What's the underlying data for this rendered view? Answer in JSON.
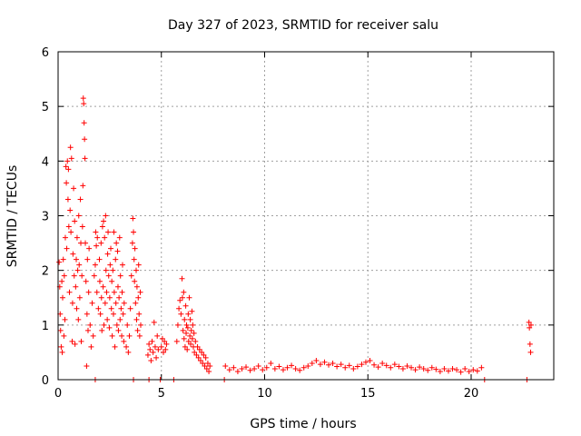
{
  "chart_data": {
    "type": "scatter",
    "title": "Day 327 of 2023, SRMTID for receiver salu",
    "xlabel": "GPS time / hours",
    "ylabel": "SRMTID / TECUs",
    "xlim": [
      0,
      24
    ],
    "ylim": [
      0,
      6
    ],
    "x_ticks": [
      0,
      5,
      10,
      15,
      20
    ],
    "x_tick_labels": [
      "0",
      "5",
      "10",
      "15",
      "20"
    ],
    "y_ticks": [
      0,
      1,
      2,
      3,
      4,
      5,
      6
    ],
    "y_tick_labels": [
      "0",
      "1",
      "2",
      "3",
      "4",
      "5",
      "6"
    ],
    "grid": true,
    "marker": "plus",
    "series": [
      {
        "name": "SRMTID",
        "color": "#ff0000",
        "points": [
          [
            0.05,
            2.15
          ],
          [
            0.08,
            1.7
          ],
          [
            0.1,
            1.2
          ],
          [
            0.12,
            0.9
          ],
          [
            0.15,
            0.6
          ],
          [
            0.18,
            1.8
          ],
          [
            0.2,
            0.5
          ],
          [
            0.22,
            1.5
          ],
          [
            0.25,
            2.2
          ],
          [
            0.28,
            0.8
          ],
          [
            0.3,
            1.9
          ],
          [
            0.33,
            1.1
          ],
          [
            0.35,
            2.6
          ],
          [
            0.38,
            3.9
          ],
          [
            0.4,
            3.6
          ],
          [
            0.42,
            2.4
          ],
          [
            0.45,
            4.0
          ],
          [
            0.48,
            3.3
          ],
          [
            0.5,
            3.85
          ],
          [
            0.52,
            2.8
          ],
          [
            0.55,
            1.6
          ],
          [
            0.58,
            3.1
          ],
          [
            0.6,
            4.25
          ],
          [
            0.62,
            2.7
          ],
          [
            0.65,
            4.05
          ],
          [
            0.68,
            0.7
          ],
          [
            0.7,
            1.4
          ],
          [
            0.72,
            2.3
          ],
          [
            0.75,
            3.5
          ],
          [
            0.78,
            1.9
          ],
          [
            0.8,
            2.9
          ],
          [
            0.82,
            0.65
          ],
          [
            0.85,
            1.7
          ],
          [
            0.88,
            2.2
          ],
          [
            0.9,
            1.3
          ],
          [
            0.92,
            2.6
          ],
          [
            0.95,
            2.0
          ],
          [
            0.98,
            1.1
          ],
          [
            1.0,
            3.0
          ],
          [
            1.02,
            2.1
          ],
          [
            1.05,
            1.5
          ],
          [
            1.08,
            3.3
          ],
          [
            1.1,
            2.5
          ],
          [
            1.12,
            0.7
          ],
          [
            1.15,
            1.9
          ],
          [
            1.18,
            2.8
          ],
          [
            1.2,
            3.55
          ],
          [
            1.22,
            5.15
          ],
          [
            1.24,
            5.05
          ],
          [
            1.26,
            4.7
          ],
          [
            1.28,
            4.4
          ],
          [
            1.3,
            4.05
          ],
          [
            1.32,
            2.5
          ],
          [
            1.35,
            1.8
          ],
          [
            1.38,
            0.25
          ],
          [
            1.4,
            1.2
          ],
          [
            1.42,
            2.2
          ],
          [
            1.45,
            0.9
          ],
          [
            1.48,
            1.6
          ],
          [
            1.5,
            2.4
          ],
          [
            1.55,
            1.0
          ],
          [
            1.6,
            0.6
          ],
          [
            1.65,
            1.4
          ],
          [
            1.7,
            0.8
          ],
          [
            1.75,
            1.9
          ],
          [
            1.8,
            2.1
          ],
          [
            1.82,
            2.7
          ],
          [
            1.85,
            2.45
          ],
          [
            1.88,
            1.6
          ],
          [
            1.9,
            2.6
          ],
          [
            1.95,
            1.3
          ],
          [
            2.0,
            2.2
          ],
          [
            2.02,
            1.8
          ],
          [
            2.05,
            1.2
          ],
          [
            2.08,
            2.5
          ],
          [
            2.1,
            1.5
          ],
          [
            2.12,
            0.9
          ],
          [
            2.15,
            2.8
          ],
          [
            2.18,
            1.7
          ],
          [
            2.2,
            2.9
          ],
          [
            2.22,
            1.0
          ],
          [
            2.25,
            2.6
          ],
          [
            2.28,
            1.4
          ],
          [
            2.3,
            3.0
          ],
          [
            2.32,
            2.0
          ],
          [
            2.35,
            1.6
          ],
          [
            2.38,
            1.1
          ],
          [
            2.4,
            2.3
          ],
          [
            2.42,
            2.7
          ],
          [
            2.45,
            1.9
          ],
          [
            2.48,
            0.95
          ],
          [
            2.5,
            1.5
          ],
          [
            2.52,
            2.1
          ],
          [
            2.55,
            2.4
          ],
          [
            2.58,
            1.3
          ],
          [
            2.6,
            1.8
          ],
          [
            2.62,
            0.8
          ],
          [
            2.65,
            2.0
          ],
          [
            2.68,
            1.2
          ],
          [
            2.7,
            2.7
          ],
          [
            2.72,
            1.6
          ],
          [
            2.75,
            0.6
          ],
          [
            2.78,
            2.2
          ],
          [
            2.8,
            1.4
          ],
          [
            2.82,
            2.5
          ],
          [
            2.85,
            1.0
          ],
          [
            2.88,
            2.35
          ],
          [
            2.9,
            1.7
          ],
          [
            2.92,
            0.9
          ],
          [
            2.95,
            1.5
          ],
          [
            2.98,
            2.6
          ],
          [
            3.0,
            1.1
          ],
          [
            3.02,
            1.9
          ],
          [
            3.05,
            1.3
          ],
          [
            3.08,
            0.8
          ],
          [
            3.1,
            1.6
          ],
          [
            3.12,
            2.1
          ],
          [
            3.15,
            1.2
          ],
          [
            3.18,
            0.7
          ],
          [
            3.2,
            1.4
          ],
          [
            3.3,
            0.6
          ],
          [
            3.35,
            1.0
          ],
          [
            3.4,
            0.5
          ],
          [
            3.45,
            0.8
          ],
          [
            3.5,
            1.3
          ],
          [
            3.55,
            1.9
          ],
          [
            3.6,
            2.5
          ],
          [
            3.62,
            2.95
          ],
          [
            3.65,
            2.7
          ],
          [
            3.68,
            2.2
          ],
          [
            3.7,
            1.8
          ],
          [
            3.72,
            2.4
          ],
          [
            3.75,
            1.4
          ],
          [
            3.78,
            2.0
          ],
          [
            3.8,
            1.1
          ],
          [
            3.82,
            1.7
          ],
          [
            3.85,
            0.9
          ],
          [
            3.88,
            1.5
          ],
          [
            3.9,
            2.1
          ],
          [
            3.92,
            1.2
          ],
          [
            3.95,
            0.8
          ],
          [
            3.98,
            1.6
          ],
          [
            4.0,
            1.0
          ],
          [
            4.35,
            0.45
          ],
          [
            4.4,
            0.65
          ],
          [
            4.45,
            0.55
          ],
          [
            4.5,
            0.35
          ],
          [
            4.55,
            0.7
          ],
          [
            4.6,
            0.5
          ],
          [
            4.65,
            1.05
          ],
          [
            4.7,
            0.6
          ],
          [
            4.75,
            0.4
          ],
          [
            4.8,
            0.8
          ],
          [
            4.85,
            0.55
          ],
          [
            5.0,
            0.6
          ],
          [
            5.05,
            0.75
          ],
          [
            5.1,
            0.5
          ],
          [
            5.15,
            0.7
          ],
          [
            5.2,
            0.55
          ],
          [
            5.25,
            0.65
          ],
          [
            5.75,
            0.7
          ],
          [
            5.8,
            1.0
          ],
          [
            5.85,
            1.3
          ],
          [
            5.9,
            1.45
          ],
          [
            5.95,
            1.2
          ],
          [
            6.0,
            1.85
          ],
          [
            6.02,
            1.5
          ],
          [
            6.05,
            0.9
          ],
          [
            6.08,
            1.6
          ],
          [
            6.1,
            0.75
          ],
          [
            6.12,
            1.1
          ],
          [
            6.15,
            0.6
          ],
          [
            6.18,
            1.35
          ],
          [
            6.2,
            0.85
          ],
          [
            6.22,
            1.0
          ],
          [
            6.25,
            0.55
          ],
          [
            6.28,
            0.95
          ],
          [
            6.3,
            1.2
          ],
          [
            6.32,
            0.7
          ],
          [
            6.35,
            1.5
          ],
          [
            6.38,
            0.8
          ],
          [
            6.4,
            1.1
          ],
          [
            6.42,
            0.65
          ],
          [
            6.45,
            0.9
          ],
          [
            6.48,
            1.25
          ],
          [
            6.5,
            0.75
          ],
          [
            6.52,
            1.0
          ],
          [
            6.55,
            0.6
          ],
          [
            6.58,
            0.85
          ],
          [
            6.6,
            0.5
          ],
          [
            6.65,
            0.7
          ],
          [
            6.7,
            0.45
          ],
          [
            6.75,
            0.6
          ],
          [
            6.8,
            0.4
          ],
          [
            6.85,
            0.55
          ],
          [
            6.9,
            0.35
          ],
          [
            6.95,
            0.5
          ],
          [
            7.0,
            0.3
          ],
          [
            7.05,
            0.45
          ],
          [
            7.1,
            0.25
          ],
          [
            7.15,
            0.4
          ],
          [
            7.2,
            0.2
          ],
          [
            7.25,
            0.3
          ],
          [
            7.3,
            0.15
          ],
          [
            7.35,
            0.25
          ],
          [
            8.1,
            0.25
          ],
          [
            8.3,
            0.18
          ],
          [
            8.5,
            0.22
          ],
          [
            8.7,
            0.15
          ],
          [
            8.9,
            0.2
          ],
          [
            9.1,
            0.23
          ],
          [
            9.3,
            0.17
          ],
          [
            9.5,
            0.2
          ],
          [
            9.7,
            0.25
          ],
          [
            9.9,
            0.18
          ],
          [
            10.1,
            0.22
          ],
          [
            10.3,
            0.3
          ],
          [
            10.5,
            0.2
          ],
          [
            10.7,
            0.24
          ],
          [
            10.9,
            0.18
          ],
          [
            11.1,
            0.22
          ],
          [
            11.3,
            0.26
          ],
          [
            11.5,
            0.2
          ],
          [
            11.7,
            0.17
          ],
          [
            11.9,
            0.22
          ],
          [
            12.1,
            0.25
          ],
          [
            12.3,
            0.3
          ],
          [
            12.5,
            0.35
          ],
          [
            12.7,
            0.28
          ],
          [
            12.9,
            0.32
          ],
          [
            13.1,
            0.27
          ],
          [
            13.3,
            0.3
          ],
          [
            13.5,
            0.24
          ],
          [
            13.7,
            0.28
          ],
          [
            13.9,
            0.22
          ],
          [
            14.1,
            0.26
          ],
          [
            14.3,
            0.2
          ],
          [
            14.5,
            0.24
          ],
          [
            14.7,
            0.28
          ],
          [
            14.9,
            0.32
          ],
          [
            15.1,
            0.35
          ],
          [
            15.3,
            0.27
          ],
          [
            15.5,
            0.23
          ],
          [
            15.7,
            0.3
          ],
          [
            15.9,
            0.26
          ],
          [
            16.1,
            0.22
          ],
          [
            16.3,
            0.28
          ],
          [
            16.5,
            0.24
          ],
          [
            16.7,
            0.2
          ],
          [
            16.9,
            0.25
          ],
          [
            17.1,
            0.22
          ],
          [
            17.3,
            0.18
          ],
          [
            17.5,
            0.23
          ],
          [
            17.7,
            0.2
          ],
          [
            17.9,
            0.17
          ],
          [
            18.1,
            0.22
          ],
          [
            18.3,
            0.19
          ],
          [
            18.5,
            0.15
          ],
          [
            18.7,
            0.2
          ],
          [
            18.9,
            0.16
          ],
          [
            19.1,
            0.2
          ],
          [
            19.3,
            0.18
          ],
          [
            19.5,
            0.14
          ],
          [
            19.7,
            0.2
          ],
          [
            19.9,
            0.15
          ],
          [
            20.1,
            0.18
          ],
          [
            20.3,
            0.16
          ],
          [
            20.5,
            0.22
          ],
          [
            22.8,
            1.05
          ],
          [
            22.82,
            0.95
          ],
          [
            22.85,
            0.65
          ],
          [
            22.88,
            0.5
          ],
          [
            22.9,
            1.0
          ],
          [
            1.8,
            0.0
          ],
          [
            3.65,
            0.0
          ],
          [
            4.4,
            0.0
          ],
          [
            4.95,
            0.0
          ],
          [
            5.6,
            0.0
          ],
          [
            8.05,
            0.0
          ],
          [
            20.65,
            0.0
          ],
          [
            22.7,
            0.0
          ]
        ]
      }
    ]
  }
}
